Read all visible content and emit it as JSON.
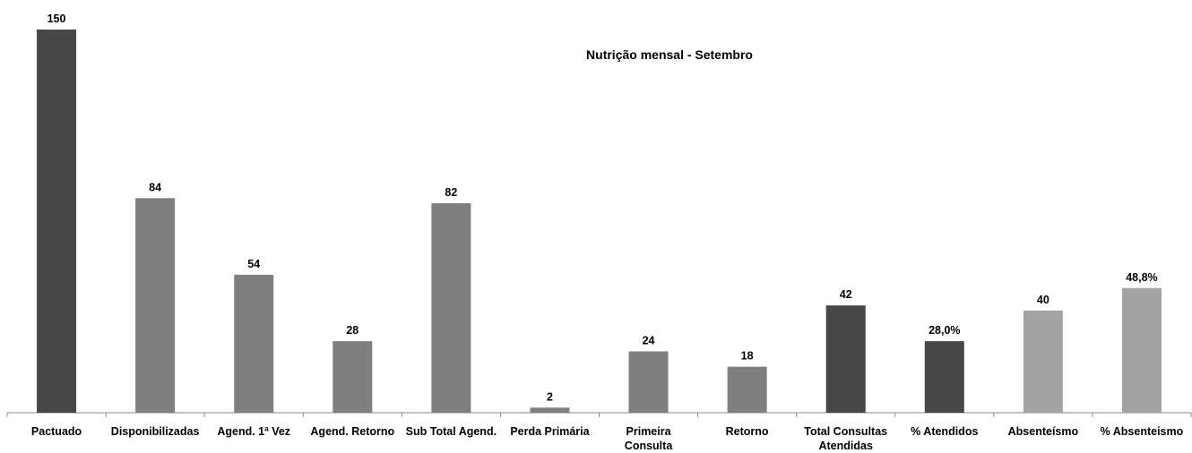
{
  "chart_data": {
    "type": "bar",
    "title": "Nutrição mensal  - Setembro",
    "xlabel": "",
    "ylabel": "",
    "ylim": [
      0,
      150
    ],
    "grid": false,
    "legend": "none",
    "categories": [
      [
        "Pactuado"
      ],
      [
        "Disponibilizadas"
      ],
      [
        "Agend. 1ª Vez"
      ],
      [
        "Agend. Retorno"
      ],
      [
        "Sub Total Agend."
      ],
      [
        "Perda Primária"
      ],
      [
        "Primeira",
        "Consulta"
      ],
      [
        "Retorno"
      ],
      [
        "Total Consultas",
        "Atendidas"
      ],
      [
        "% Atendidos"
      ],
      [
        "Absenteísmo"
      ],
      [
        "% Absenteismo"
      ]
    ],
    "values": [
      150,
      84,
      54,
      28,
      82,
      2,
      24,
      18,
      42,
      28.0,
      40,
      48.8
    ],
    "labels": [
      "150",
      "84",
      "54",
      "28",
      "82",
      "2",
      "24",
      "18",
      "42",
      "28,0%",
      "40",
      "48,8%"
    ],
    "colors": [
      "#474747",
      "#7f7f7f",
      "#7f7f7f",
      "#7f7f7f",
      "#7f7f7f",
      "#7f7f7f",
      "#7f7f7f",
      "#7f7f7f",
      "#474747",
      "#474747",
      "#a3a3a3",
      "#a3a3a3"
    ]
  }
}
